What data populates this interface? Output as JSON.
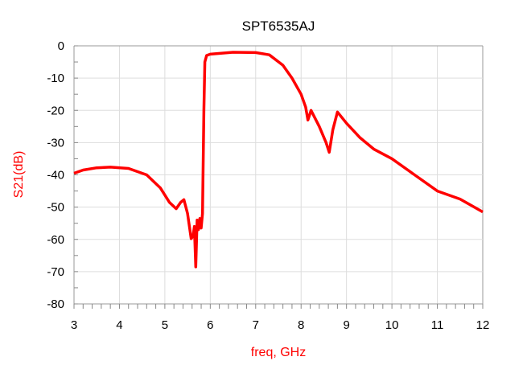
{
  "chart_data": {
    "type": "line",
    "title": "SPT6535AJ",
    "xlabel": "freq, GHz",
    "ylabel": "S21(dB)",
    "xlim": [
      3,
      12
    ],
    "ylim": [
      -80,
      0
    ],
    "xticks": [
      3,
      4,
      5,
      6,
      7,
      8,
      9,
      10,
      11,
      12
    ],
    "yticks": [
      0,
      -10,
      -20,
      -30,
      -40,
      -50,
      -60,
      -70,
      -80
    ],
    "grid": true,
    "series_color": "#ff0000",
    "label_color": "#ff0000",
    "series": [
      {
        "name": "S21(dB)",
        "x": [
          3.0,
          3.2,
          3.5,
          3.8,
          4.2,
          4.6,
          4.9,
          5.1,
          5.25,
          5.35,
          5.42,
          5.5,
          5.58,
          5.62,
          5.65,
          5.68,
          5.71,
          5.74,
          5.77,
          5.8,
          5.83,
          5.86,
          5.88,
          5.92,
          6.0,
          6.5,
          7.0,
          7.3,
          7.6,
          7.8,
          8.0,
          8.1,
          8.15,
          8.22,
          8.4,
          8.55,
          8.62,
          8.7,
          8.8,
          9.0,
          9.3,
          9.6,
          10.0,
          10.5,
          11.0,
          11.5,
          12.0
        ],
        "y": [
          -39.5,
          -38.5,
          -37.8,
          -37.6,
          -38,
          -40,
          -44,
          -48.5,
          -50.5,
          -48.5,
          -47.7,
          -52,
          -59.8,
          -59,
          -56,
          -68.5,
          -54,
          -57,
          -53.5,
          -56.5,
          -52,
          -20,
          -5,
          -3,
          -2.6,
          -2,
          -2.1,
          -2.8,
          -6,
          -10,
          -15,
          -19,
          -23,
          -20,
          -25,
          -30,
          -33,
          -26,
          -20.5,
          -24,
          -28.5,
          -32,
          -35,
          -40,
          -45,
          -47.5,
          -51.5
        ]
      }
    ]
  }
}
